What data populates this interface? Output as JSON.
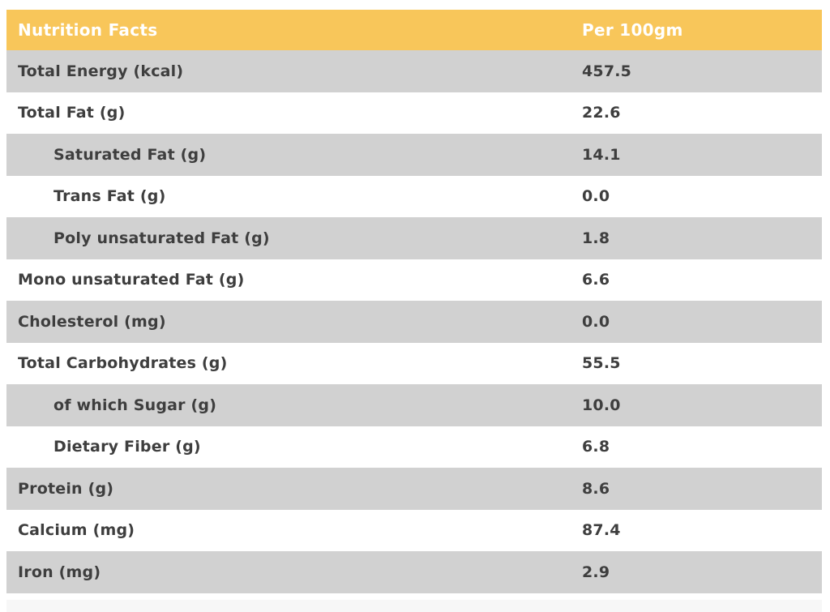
{
  "table": {
    "header": {
      "label": "Nutrition Facts",
      "value_label": "Per 100gm"
    },
    "colors": {
      "accent": "#F8C65A",
      "shaded_row": "#D1D1D1",
      "plain_row": "#FFFFFF",
      "text": "#3E3E3E",
      "header_text": "#FFFFFF",
      "partial_row": "#F7F7F7"
    },
    "rows": [
      {
        "label": "Total Energy (kcal)",
        "value": "457.5",
        "indent": false,
        "shaded": true
      },
      {
        "label": "Total Fat (g)",
        "value": "22.6",
        "indent": false,
        "shaded": false
      },
      {
        "label": "Saturated Fat (g)",
        "value": "14.1",
        "indent": true,
        "shaded": true
      },
      {
        "label": "Trans Fat (g)",
        "value": "0.0",
        "indent": true,
        "shaded": false
      },
      {
        "label": "Poly unsaturated Fat (g)",
        "value": "1.8",
        "indent": true,
        "shaded": true
      },
      {
        "label": "Mono unsaturated Fat (g)",
        "value": "6.6",
        "indent": false,
        "shaded": false
      },
      {
        "label": "Cholesterol (mg)",
        "value": "0.0",
        "indent": false,
        "shaded": true
      },
      {
        "label": "Total Carbohydrates (g)",
        "value": "55.5",
        "indent": false,
        "shaded": false
      },
      {
        "label": "of which Sugar (g)",
        "value": "10.0",
        "indent": true,
        "shaded": true
      },
      {
        "label": "Dietary Fiber (g)",
        "value": "6.8",
        "indent": true,
        "shaded": false
      },
      {
        "label": "Protein (g)",
        "value": "8.6",
        "indent": false,
        "shaded": true
      },
      {
        "label": "Calcium (mg)",
        "value": "87.4",
        "indent": false,
        "shaded": false
      },
      {
        "label": "Iron (mg)",
        "value": "2.9",
        "indent": false,
        "shaded": true
      }
    ]
  },
  "chart_data": {
    "type": "table",
    "title": "Nutrition Facts",
    "columns": [
      "Nutrition Facts",
      "Per 100gm"
    ],
    "rows": [
      [
        "Total Energy (kcal)",
        457.5
      ],
      [
        "Total Fat (g)",
        22.6
      ],
      [
        "Saturated Fat (g)",
        14.1
      ],
      [
        "Trans Fat (g)",
        0.0
      ],
      [
        "Poly unsaturated Fat (g)",
        1.8
      ],
      [
        "Mono unsaturated Fat (g)",
        6.6
      ],
      [
        "Cholesterol (mg)",
        0.0
      ],
      [
        "Total Carbohydrates (g)",
        55.5
      ],
      [
        "of which Sugar (g)",
        10.0
      ],
      [
        "Dietary Fiber (g)",
        6.8
      ],
      [
        "Protein (g)",
        8.6
      ],
      [
        "Calcium (mg)",
        87.4
      ],
      [
        "Iron (mg)",
        2.9
      ]
    ],
    "layout_hints": {
      "header_background": "#F8C65A",
      "alternating_row_shading": true,
      "indented_rows": [
        "Saturated Fat (g)",
        "Trans Fat (g)",
        "Poly unsaturated Fat (g)",
        "of which Sugar (g)",
        "Dietary Fiber (g)"
      ]
    }
  }
}
